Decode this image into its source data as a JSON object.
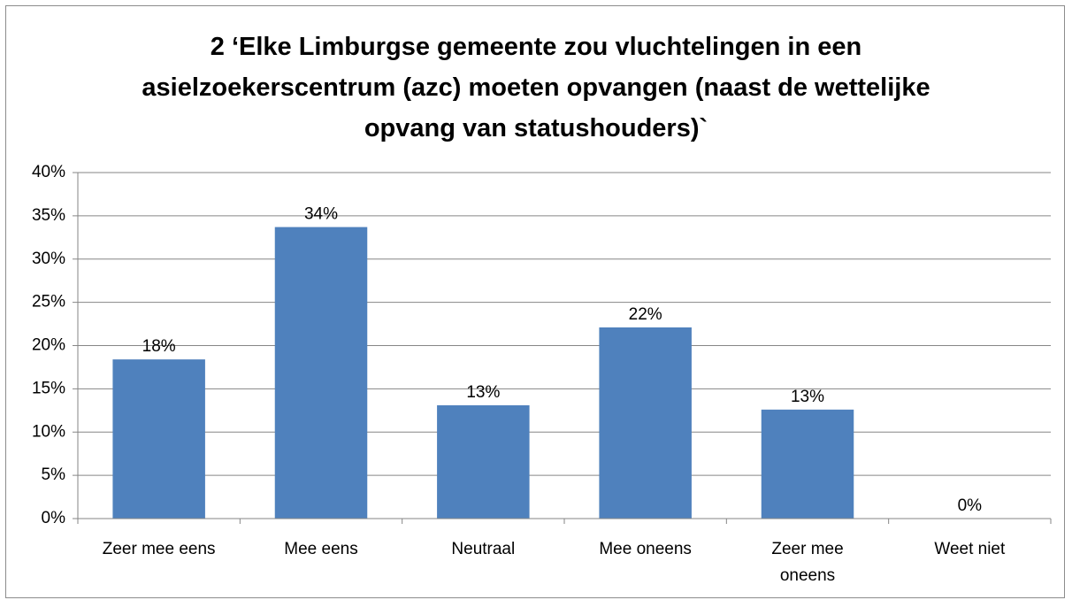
{
  "chart_data": {
    "type": "bar",
    "title": "2 ‘Elke Limburgse gemeente zou vluchtelingen in een asielzoekerscentrum (azc) moeten opvangen (naast de wettelijke opvang van statushouders)`",
    "categories": [
      "Zeer mee eens",
      "Mee eens",
      "Neutraal",
      "Mee oneens",
      "Zeer mee oneens",
      "Weet niet"
    ],
    "values": [
      18.4,
      33.7,
      13.1,
      22.1,
      12.6,
      0
    ],
    "value_labels": [
      "18%",
      "34%",
      "13%",
      "22%",
      "13%",
      "0%"
    ],
    "color": "#4f81bd",
    "ylim": [
      0,
      40
    ],
    "yticks": [
      {
        "value": 0,
        "label": "0%"
      },
      {
        "value": 5,
        "label": "5%"
      },
      {
        "value": 10,
        "label": "10%"
      },
      {
        "value": 15,
        "label": "15%"
      },
      {
        "value": 20,
        "label": "20%"
      },
      {
        "value": 25,
        "label": "25%"
      },
      {
        "value": 30,
        "label": "30%"
      },
      {
        "value": 35,
        "label": "35%"
      },
      {
        "value": 40,
        "label": "40%"
      }
    ],
    "grid": true
  }
}
